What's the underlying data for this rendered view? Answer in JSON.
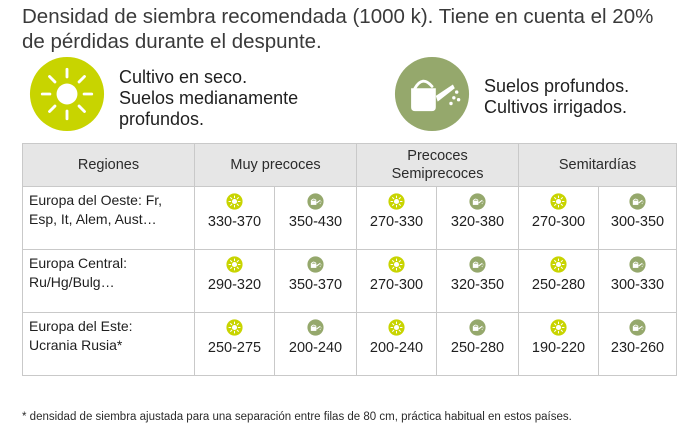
{
  "intro": {
    "line1": "Densidad de siembra recomendada (1000 k). Tiene en cuenta el 20%",
    "line2": "de pérdidas durante el despunte."
  },
  "legend": {
    "dry": {
      "icon": "sun-icon",
      "lines": [
        "Cultivo en seco.",
        "Suelos medianamente",
        "profundos."
      ],
      "color": "#c8d400"
    },
    "irrigated": {
      "icon": "watering-can-icon",
      "lines": [
        "Suelos profundos.",
        "Cultivos irrigados."
      ],
      "color": "#95a86c"
    }
  },
  "table": {
    "headers": {
      "regions": "Regiones",
      "groups": [
        {
          "lines": [
            "Muy precoces"
          ]
        },
        {
          "lines": [
            "Precoces",
            "Semiprecoces"
          ]
        },
        {
          "lines": [
            "Semitardías"
          ]
        }
      ]
    },
    "rows": [
      {
        "region": [
          "Europa del Oeste: Fr,",
          "Esp, It, Alem, Aust…"
        ],
        "values": [
          "330-370",
          "350-430",
          "270-330",
          "320-380",
          "270-300",
          "300-350"
        ]
      },
      {
        "region": [
          "Europa Central:",
          "Ru/Hg/Bulg…"
        ],
        "values": [
          "290-320",
          "350-370",
          "270-300",
          "320-350",
          "250-280",
          "300-330"
        ]
      },
      {
        "region": [
          "Europa del Este:",
          "Ucrania Rusia*"
        ],
        "values": [
          "250-275",
          "200-240",
          "200-240",
          "250-280",
          "190-220",
          "230-260"
        ]
      }
    ]
  },
  "footnote": "* densidad de siembra ajustada para una separación entre filas de 80 cm, práctica habitual en estos países."
}
